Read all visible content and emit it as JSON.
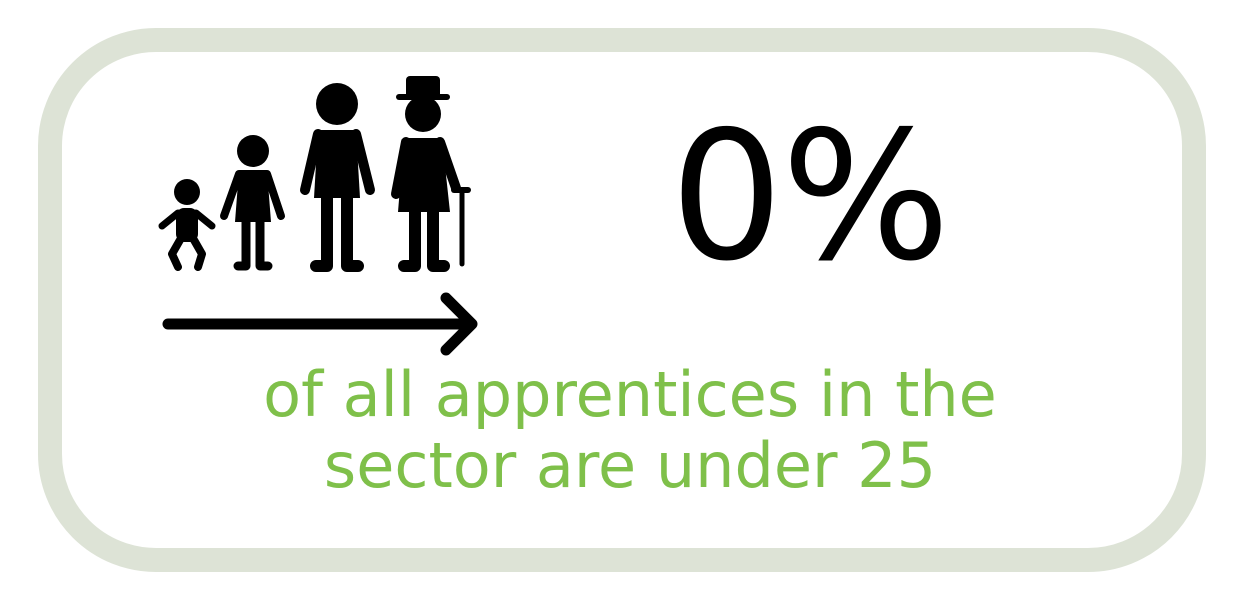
{
  "stat": {
    "value": "0%",
    "caption_line1": "of all apprentices in the",
    "caption_line2": "sector are under 25"
  },
  "icon": {
    "name": "age-progression-icon"
  },
  "colors": {
    "border": "#dde3d6",
    "accent_text": "#7fc04a",
    "value_text": "#000000",
    "icon": "#000000"
  }
}
